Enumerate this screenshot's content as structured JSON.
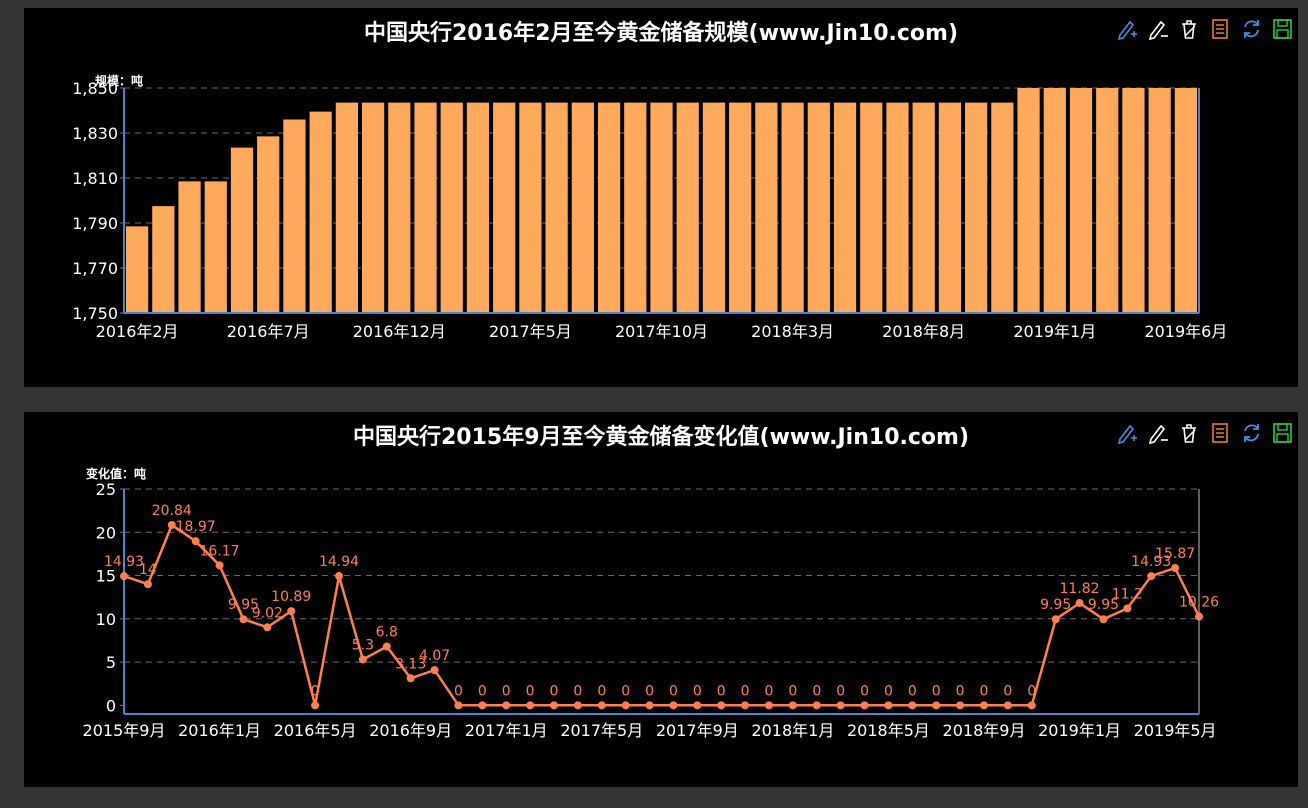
{
  "toolbox": {
    "tools": [
      {
        "icon": "mark-icon",
        "color": "#3f8fe0"
      },
      {
        "icon": "mark-undo-icon",
        "color": "#ffffff"
      },
      {
        "icon": "mark-clear-icon",
        "color": "#ffffff"
      },
      {
        "icon": "data-view-icon",
        "color": "#e87c2b"
      },
      {
        "icon": "restore-icon",
        "color": "#3f8fe0"
      },
      {
        "icon": "save-image-icon",
        "color": "#33cc33"
      }
    ]
  },
  "chart_data": [
    {
      "type": "bar",
      "title": "中国央行2016年2月至今黄金储备规模(www.Jin10.com)",
      "ylabel": "规模：吨",
      "ylim": [
        1750,
        1850
      ],
      "yticks": [
        1750,
        1770,
        1790,
        1810,
        1830,
        1850
      ],
      "ytick_labels": [
        "1,750",
        "1,770",
        "1,790",
        "1,810",
        "1,830",
        "1,850"
      ],
      "grid": true,
      "bar_color": "#ffa95c",
      "categories": [
        "2016年2月",
        "2016年3月",
        "2016年4月",
        "2016年5月",
        "2016年6月",
        "2016年7月",
        "2016年8月",
        "2016年9月",
        "2016年10月",
        "2016年11月",
        "2016年12月",
        "2017年1月",
        "2017年2月",
        "2017年3月",
        "2017年4月",
        "2017年5月",
        "2017年6月",
        "2017年7月",
        "2017年8月",
        "2017年9月",
        "2017年10月",
        "2017年11月",
        "2017年12月",
        "2018年1月",
        "2018年2月",
        "2018年3月",
        "2018年4月",
        "2018年5月",
        "2018年6月",
        "2018年7月",
        "2018年8月",
        "2018年9月",
        "2018年10月",
        "2018年11月",
        "2018年12月",
        "2019年1月",
        "2019年2月",
        "2019年3月",
        "2019年4月",
        "2019年5月",
        "2019年6月"
      ],
      "xtick_labels": [
        "2016年2月",
        "2016年7月",
        "2016年12月",
        "2017年5月",
        "2017年10月",
        "2018年3月",
        "2018年8月",
        "2019年1月",
        "2019年6月"
      ],
      "values": [
        1788.5,
        1797.5,
        1808.5,
        1808.5,
        1823.5,
        1828.5,
        1836.0,
        1839.5,
        1843.5,
        1843.5,
        1843.5,
        1843.5,
        1843.5,
        1843.5,
        1843.5,
        1843.5,
        1843.5,
        1843.5,
        1843.5,
        1843.5,
        1843.5,
        1843.5,
        1843.5,
        1843.5,
        1843.5,
        1843.5,
        1843.5,
        1843.5,
        1843.5,
        1843.5,
        1843.5,
        1843.5,
        1843.5,
        1843.5,
        1851.0,
        1851.0,
        1851.0,
        1851.0,
        1851.0,
        1851.0,
        1851.0
      ]
    },
    {
      "type": "line",
      "title": "中国央行2015年9月至今黄金储备变化值(www.Jin10.com)",
      "ylabel": "变化值：吨",
      "ylim": [
        -1,
        25
      ],
      "yticks": [
        0,
        5,
        10,
        15,
        20,
        25
      ],
      "ytick_labels": [
        "0",
        "5",
        "10",
        "15",
        "20",
        "25"
      ],
      "grid": true,
      "line_color": "#ff7f50",
      "categories": [
        "2015年9月",
        "2015年10月",
        "2015年11月",
        "2015年12月",
        "2016年1月",
        "2016年2月",
        "2016年3月",
        "2016年4月",
        "2016年5月",
        "2016年6月",
        "2016年7月",
        "2016年8月",
        "2016年9月",
        "2016年10月",
        "2016年11月",
        "2016年12月",
        "2017年1月",
        "2017年2月",
        "2017年3月",
        "2017年4月",
        "2017年5月",
        "2017年6月",
        "2017年7月",
        "2017年8月",
        "2017年9月",
        "2017年10月",
        "2017年11月",
        "2017年12月",
        "2018年1月",
        "2018年2月",
        "2018年3月",
        "2018年4月",
        "2018年5月",
        "2018年6月",
        "2018年7月",
        "2018年8月",
        "2018年9月",
        "2018年10月",
        "2018年11月",
        "2018年12月",
        "2019年1月",
        "2019年2月",
        "2019年3月",
        "2019年4月",
        "2019年5月",
        "2019年6月"
      ],
      "xtick_labels": [
        "2015年9月",
        "2016年1月",
        "2016年5月",
        "2016年9月",
        "2017年1月",
        "2017年5月",
        "2017年9月",
        "2018年1月",
        "2018年5月",
        "2018年9月",
        "2019年1月",
        "2019年5月"
      ],
      "values": [
        14.93,
        14,
        20.84,
        18.97,
        16.17,
        9.95,
        9.02,
        10.89,
        0,
        14.94,
        5.3,
        6.8,
        3.13,
        4.07,
        0,
        0,
        0,
        0,
        0,
        0,
        0,
        0,
        0,
        0,
        0,
        0,
        0,
        0,
        0,
        0,
        0,
        0,
        0,
        0,
        0,
        0,
        0,
        0,
        0,
        9.95,
        11.82,
        9.95,
        11.2,
        14.93,
        15.87,
        10.26
      ],
      "data_labels": [
        "14.93",
        "14",
        "20.84",
        "18.97",
        "16.17",
        "9.95",
        "9.02",
        "10.89",
        "0",
        "14.94",
        "5.3",
        "6.8",
        "3.13",
        "4.07",
        "0",
        "0",
        "0",
        "0",
        "0",
        "0",
        "0",
        "0",
        "0",
        "0",
        "0",
        "0",
        "0",
        "0",
        "0",
        "0",
        "0",
        "0",
        "0",
        "0",
        "0",
        "0",
        "0",
        "0",
        "0",
        "9.95",
        "11.82",
        "9.95",
        "11.2",
        "14.93",
        "15.87",
        "10.26"
      ]
    }
  ]
}
